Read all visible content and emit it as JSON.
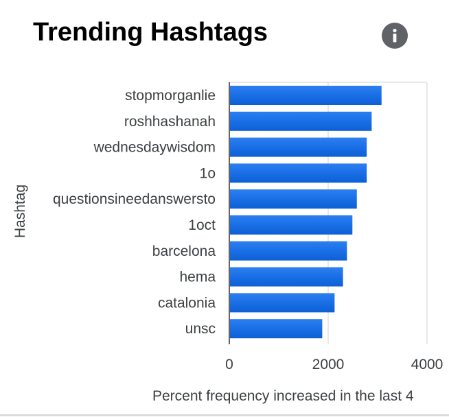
{
  "header": {
    "title": "Trending Hashtags",
    "info_icon": "info-icon"
  },
  "chart_data": {
    "type": "bar",
    "orientation": "horizontal",
    "categories": [
      "stopmorganlie",
      "roshhashanah",
      "wednesdaywisdom",
      "1o",
      "questionsineedanswersto",
      "1oct",
      "barcelona",
      "hema",
      "catalonia",
      "unsc"
    ],
    "values": [
      3080,
      2880,
      2780,
      2780,
      2580,
      2490,
      2380,
      2300,
      2130,
      1880
    ],
    "xlabel": "Percent frequency increased in the last 4",
    "ylabel": "Hashtag",
    "xlim": [
      0,
      4000
    ],
    "xticks": [
      "0",
      "2000",
      "4000"
    ],
    "grid": true,
    "bar_color": "#1a73e8"
  }
}
